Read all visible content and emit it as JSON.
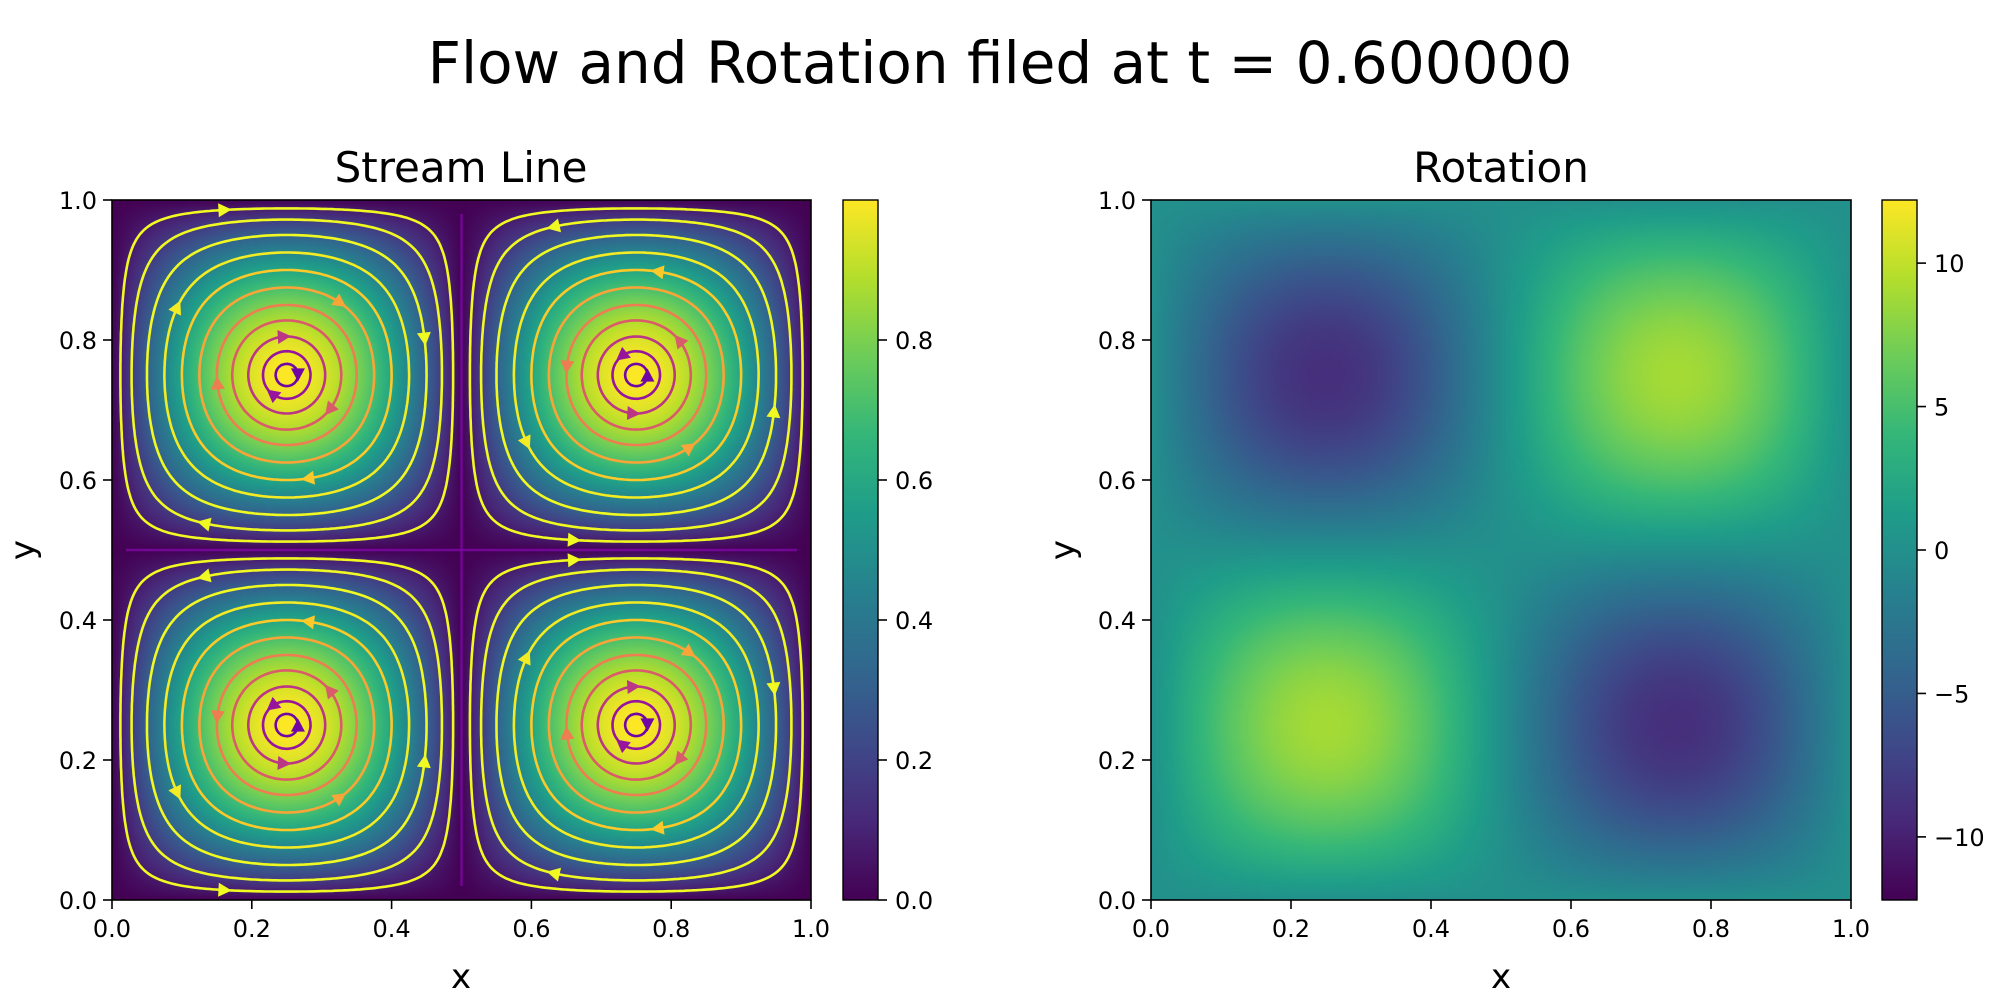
{
  "figure": {
    "suptitle": "Flow and Rotation filed at t = 0.600000"
  },
  "chart_data": [
    {
      "type": "heatmap",
      "overlay": "streamlines",
      "title": "Stream Line",
      "xlabel": "x",
      "ylabel": "y",
      "xlim": [
        0.0,
        1.0
      ],
      "ylim": [
        0.0,
        1.0
      ],
      "xticks": [
        "0.0",
        "0.2",
        "0.4",
        "0.6",
        "0.8",
        "1.0"
      ],
      "yticks": [
        "0.0",
        "0.2",
        "0.4",
        "0.6",
        "0.8",
        "1.0"
      ],
      "field": "speed = |sin(2πx)·sin(2πy)|, vortex cells centered at (0.25,0.25), (0.75,0.25), (0.25,0.75), (0.75,0.75)",
      "colormap": "viridis",
      "streamline_colormap": "plasma",
      "colorbar": {
        "range": [
          0.0,
          1.0
        ],
        "ticks": [
          "0.0",
          "0.2",
          "0.4",
          "0.6",
          "0.8"
        ]
      },
      "grid": false
    },
    {
      "type": "heatmap",
      "title": "Rotation",
      "xlabel": "x",
      "ylabel": "y",
      "xlim": [
        0.0,
        1.0
      ],
      "ylim": [
        0.0,
        1.0
      ],
      "xticks": [
        "0.0",
        "0.2",
        "0.4",
        "0.6",
        "0.8",
        "1.0"
      ],
      "yticks": [
        "0.0",
        "0.2",
        "0.4",
        "0.6",
        "0.8",
        "1.0"
      ],
      "field": "rotation ≈ 8.9·sin(2πx)·sin(2πy); maxima at (0.25,0.25) and (0.75,0.75), minima at (0.75,0.25) and (0.25,0.75)",
      "peak_value": 8.9,
      "colormap": "viridis",
      "colorbar": {
        "range": [
          -12.2,
          12.2
        ],
        "ticks": [
          "10",
          "5",
          "0",
          "−5",
          "−10"
        ],
        "tick_values": [
          10,
          5,
          0,
          -5,
          -10
        ]
      },
      "grid": false
    }
  ],
  "colors": {
    "axis": "#000000",
    "background": "#ffffff"
  }
}
